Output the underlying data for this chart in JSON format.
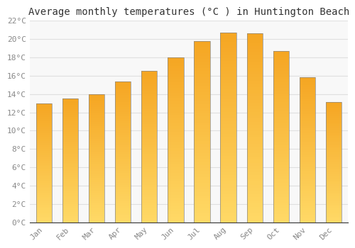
{
  "title": "Average monthly temperatures (°C ) in Huntington Beach",
  "months": [
    "Jan",
    "Feb",
    "Mar",
    "Apr",
    "May",
    "Jun",
    "Jul",
    "Aug",
    "Sep",
    "Oct",
    "Nov",
    "Dec"
  ],
  "values": [
    13.0,
    13.5,
    14.0,
    15.4,
    16.5,
    18.0,
    19.8,
    20.7,
    20.6,
    18.7,
    15.8,
    13.1
  ],
  "bar_color_top": "#F5A623",
  "bar_color_mid": "#F5B942",
  "bar_color_bottom": "#FFD966",
  "bar_edge_color": "#888888",
  "ylim": [
    0,
    22
  ],
  "yticks": [
    0,
    2,
    4,
    6,
    8,
    10,
    12,
    14,
    16,
    18,
    20,
    22
  ],
  "ytick_labels": [
    "0°C",
    "2°C",
    "4°C",
    "6°C",
    "8°C",
    "10°C",
    "12°C",
    "14°C",
    "16°C",
    "18°C",
    "20°C",
    "22°C"
  ],
  "background_color": "#ffffff",
  "plot_bg_color": "#f8f8f8",
  "grid_color": "#e0e0e0",
  "title_fontsize": 10,
  "tick_fontsize": 8,
  "tick_color": "#888888",
  "font_family": "monospace",
  "bar_width": 0.6,
  "n_gradient_steps": 60
}
